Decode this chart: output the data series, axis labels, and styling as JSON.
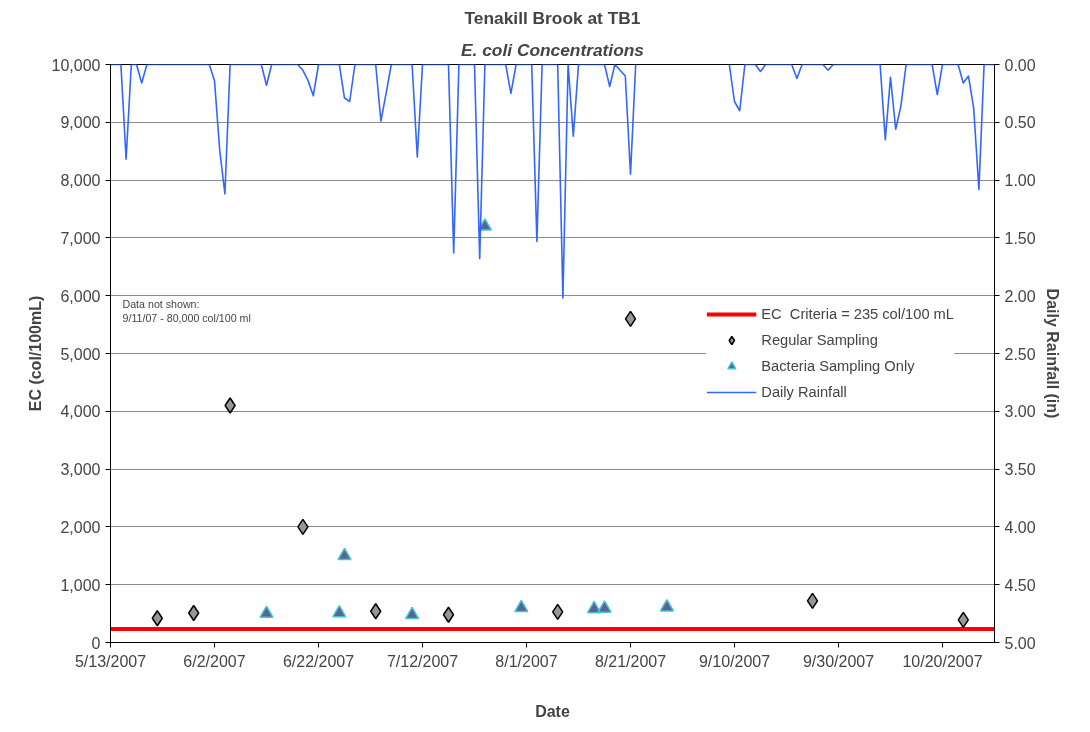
{
  "chart_data": {
    "type": "scatter",
    "title": "Tenakill Brook at TB1",
    "subtitle": "E. coli Concentrations",
    "xlabel": "Date",
    "ylabel": "EC (col/100mL)",
    "y2label": "Daily Rainfall (in)",
    "xlim": [
      "2007-05-13",
      "2007-10-30"
    ],
    "xticks": [
      {
        "value": "2007-05-13",
        "label": "5/13/2007"
      },
      {
        "value": "2007-06-02",
        "label": "6/2/2007"
      },
      {
        "value": "2007-06-22",
        "label": "6/22/2007"
      },
      {
        "value": "2007-07-12",
        "label": "7/12/2007"
      },
      {
        "value": "2007-08-01",
        "label": "8/1/2007"
      },
      {
        "value": "2007-08-21",
        "label": "8/21/2007"
      },
      {
        "value": "2007-09-10",
        "label": "9/10/2007"
      },
      {
        "value": "2007-09-30",
        "label": "9/30/2007"
      },
      {
        "value": "2007-10-20",
        "label": "10/20/2007"
      }
    ],
    "ylim": [
      0,
      10000
    ],
    "yticks": [
      {
        "value": 0,
        "label": "0"
      },
      {
        "value": 1000,
        "label": "1,000"
      },
      {
        "value": 2000,
        "label": "2,000"
      },
      {
        "value": 3000,
        "label": "3,000"
      },
      {
        "value": 4000,
        "label": "4,000"
      },
      {
        "value": 5000,
        "label": "5,000"
      },
      {
        "value": 6000,
        "label": "6,000"
      },
      {
        "value": 7000,
        "label": "7,000"
      },
      {
        "value": 8000,
        "label": "8,000"
      },
      {
        "value": 9000,
        "label": "9,000"
      },
      {
        "value": 10000,
        "label": "10,000"
      }
    ],
    "y2lim": [
      5,
      0
    ],
    "y2ticks": [
      {
        "value": 0,
        "label": "0.00"
      },
      {
        "value": 0.5,
        "label": "0.50"
      },
      {
        "value": 1,
        "label": "1.00"
      },
      {
        "value": 1.5,
        "label": "1.50"
      },
      {
        "value": 2,
        "label": "2.00"
      },
      {
        "value": 2.5,
        "label": "2.50"
      },
      {
        "value": 3,
        "label": "3.00"
      },
      {
        "value": 3.5,
        "label": "3.50"
      },
      {
        "value": 4,
        "label": "4.00"
      },
      {
        "value": 4.5,
        "label": "4.50"
      },
      {
        "value": 5,
        "label": "5.00"
      }
    ],
    "grid": "y",
    "legend": "right",
    "ref_lines": [
      {
        "axis": "y",
        "value": 235,
        "label": "EC  Criteria = 235 col/100 mL",
        "color": "#ff0000"
      }
    ],
    "annotations": [
      "Data not shown:\n9/11/07 - 80,000 col/100 ml"
    ],
    "series": [
      {
        "name": "Regular Sampling",
        "marker": "diamond",
        "color": "#969696",
        "x": [
          "2007-05-22",
          "2007-05-29",
          "2007-06-05",
          "2007-06-19",
          "2007-07-03",
          "2007-07-17",
          "2007-08-07",
          "2007-08-21",
          "2007-09-25",
          "2007-10-24"
        ],
        "values": [
          420,
          510,
          4100,
          2000,
          540,
          480,
          530,
          5600,
          720,
          390
        ]
      },
      {
        "name": "Bacteria Sampling Only",
        "marker": "triangle",
        "color": "#5f5f9a",
        "x": [
          "2007-06-12",
          "2007-06-26",
          "2007-06-27",
          "2007-07-10",
          "2007-07-24",
          "2007-07-31",
          "2007-08-14",
          "2007-08-16",
          "2007-08-28"
        ],
        "values": [
          500,
          510,
          1500,
          480,
          7200,
          600,
          580,
          590,
          610
        ]
      },
      {
        "name": "Daily Rainfall",
        "type": "line",
        "axis": "y2",
        "marker": "none",
        "line_style": "solid",
        "color": "#3366ff",
        "x": [
          "2007-05-13",
          "2007-05-15",
          "2007-05-16",
          "2007-05-17",
          "2007-05-18",
          "2007-05-19",
          "2007-05-20",
          "2007-06-01",
          "2007-06-02",
          "2007-06-03",
          "2007-06-04",
          "2007-06-05",
          "2007-06-11",
          "2007-06-12",
          "2007-06-13",
          "2007-06-18",
          "2007-06-19",
          "2007-06-20",
          "2007-06-21",
          "2007-06-22",
          "2007-06-26",
          "2007-06-27",
          "2007-06-28",
          "2007-06-29",
          "2007-07-03",
          "2007-07-04",
          "2007-07-05",
          "2007-07-06",
          "2007-07-10",
          "2007-07-11",
          "2007-07-12",
          "2007-07-17",
          "2007-07-18",
          "2007-07-19",
          "2007-07-22",
          "2007-07-23",
          "2007-07-24",
          "2007-07-28",
          "2007-07-29",
          "2007-07-30",
          "2007-08-02",
          "2007-08-03",
          "2007-08-04",
          "2007-08-07",
          "2007-08-08",
          "2007-08-09",
          "2007-08-10",
          "2007-08-11",
          "2007-08-16",
          "2007-08-17",
          "2007-08-18",
          "2007-08-19",
          "2007-08-20",
          "2007-08-21",
          "2007-08-22",
          "2007-09-01",
          "2007-09-09",
          "2007-09-10",
          "2007-09-11",
          "2007-09-12",
          "2007-09-14",
          "2007-09-15",
          "2007-09-16",
          "2007-09-21",
          "2007-09-22",
          "2007-09-23",
          "2007-09-27",
          "2007-09-28",
          "2007-09-29",
          "2007-10-08",
          "2007-10-09",
          "2007-10-10",
          "2007-10-11",
          "2007-10-12",
          "2007-10-13",
          "2007-10-18",
          "2007-10-19",
          "2007-10-20",
          "2007-10-23",
          "2007-10-24",
          "2007-10-25",
          "2007-10-26",
          "2007-10-27",
          "2007-10-28",
          "2007-10-30"
        ],
        "values": [
          0,
          0,
          0.82,
          0,
          0,
          0.16,
          0,
          0,
          0.14,
          0.74,
          1.12,
          0,
          0,
          0.18,
          0,
          0,
          0.05,
          0.14,
          0.27,
          0,
          0,
          0.29,
          0.32,
          0,
          0,
          0.49,
          0.25,
          0,
          0,
          0.8,
          0,
          0,
          1.63,
          0,
          0,
          1.68,
          0,
          0,
          0.25,
          0,
          0,
          1.53,
          0,
          0,
          2.02,
          0,
          0.62,
          0,
          0,
          0.19,
          0,
          0.05,
          0.1,
          0.95,
          0,
          null,
          0,
          0.32,
          0.4,
          0,
          0,
          0.06,
          0,
          0,
          0.12,
          0,
          0,
          0.05,
          0,
          0,
          0.65,
          0.11,
          0.56,
          0.36,
          0,
          0,
          0.26,
          0,
          0,
          0.16,
          0.1,
          0.38,
          1.08,
          0,
          0
        ]
      }
    ]
  }
}
